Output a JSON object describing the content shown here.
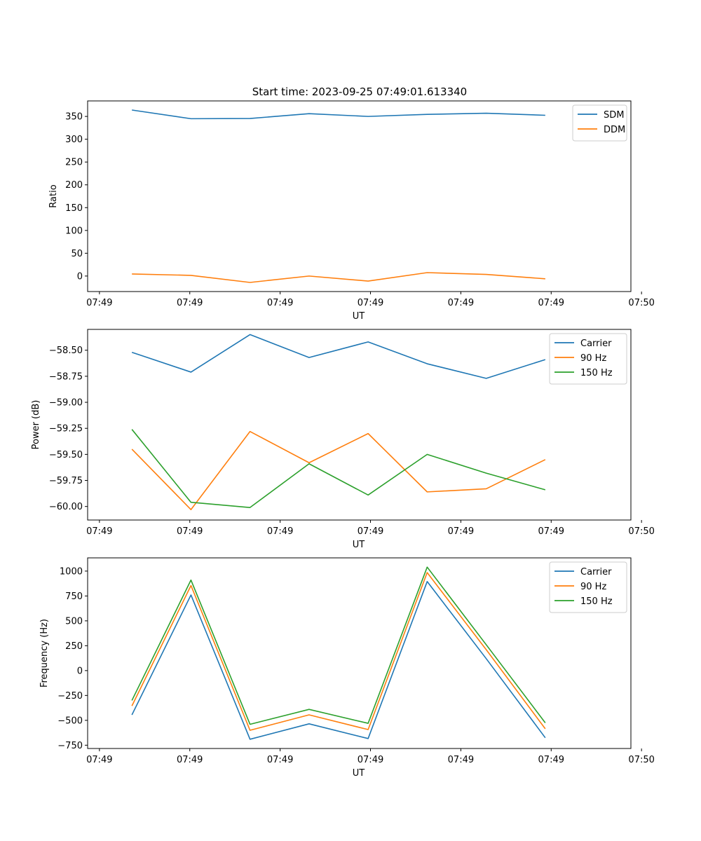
{
  "title": "Start time: 2023-09-25 07:49:01.613340",
  "colors": {
    "c0": "#1f77b4",
    "c1": "#ff7f0e",
    "c2": "#2ca02c",
    "axis": "#000000",
    "legend_border": "#cccccc",
    "background": "#ffffff"
  },
  "chart_data": [
    {
      "type": "line",
      "xlabel": "UT",
      "ylabel": "Ratio",
      "x": [
        1,
        2,
        3,
        4,
        5,
        6,
        7,
        8
      ],
      "xlim": [
        0.25,
        9.45
      ],
      "xticks": [
        0.45,
        1.98,
        3.51,
        5.04,
        6.57,
        8.1,
        9.63
      ],
      "xticklabels": [
        "07:49",
        "07:49",
        "07:49",
        "07:49",
        "07:49",
        "07:49",
        "07:50"
      ],
      "ylim": [
        -34,
        384
      ],
      "yticks": [
        0,
        50,
        100,
        150,
        200,
        250,
        300,
        350
      ],
      "yticklabels": [
        "0",
        "50",
        "100",
        "150",
        "200",
        "250",
        "300",
        "350"
      ],
      "legend_loc": "upper right",
      "series": [
        {
          "name": "SDM",
          "color": "#1f77b4",
          "values": [
            364,
            345,
            345.5,
            356,
            350,
            354.5,
            357,
            352.5
          ]
        },
        {
          "name": "DDM",
          "color": "#ff7f0e",
          "values": [
            4.5,
            1.5,
            -14,
            0,
            -11,
            7.5,
            3.5,
            -6
          ]
        }
      ]
    },
    {
      "type": "line",
      "xlabel": "UT",
      "ylabel": "Power (dB)",
      "x": [
        1,
        2,
        3,
        4,
        5,
        6,
        7,
        8
      ],
      "xlim": [
        0.25,
        9.45
      ],
      "xticks": [
        0.45,
        1.98,
        3.51,
        5.04,
        6.57,
        8.1,
        9.63
      ],
      "xticklabels": [
        "07:49",
        "07:49",
        "07:49",
        "07:49",
        "07:49",
        "07:49",
        "07:50"
      ],
      "ylim": [
        -60.13,
        -58.3
      ],
      "yticks": [
        -60.0,
        -59.75,
        -59.5,
        -59.25,
        -59.0,
        -58.75,
        -58.5
      ],
      "yticklabels": [
        "−60.00",
        "−59.75",
        "−59.50",
        "−59.25",
        "−59.00",
        "−58.75",
        "−58.50"
      ],
      "legend_loc": "upper right",
      "series": [
        {
          "name": "Carrier",
          "color": "#1f77b4",
          "values": [
            -58.52,
            -58.71,
            -58.35,
            -58.57,
            -58.42,
            -58.63,
            -58.77,
            -58.59
          ]
        },
        {
          "name": "90 Hz",
          "color": "#ff7f0e",
          "values": [
            -59.45,
            -60.03,
            -59.28,
            -59.58,
            -59.3,
            -59.86,
            -59.83,
            -59.55
          ]
        },
        {
          "name": "150 Hz",
          "color": "#2ca02c",
          "values": [
            -59.26,
            -59.96,
            -60.01,
            -59.59,
            -59.89,
            -59.5,
            -59.68,
            -59.84
          ]
        }
      ]
    },
    {
      "type": "line",
      "xlabel": "UT",
      "ylabel": "Frequency (Hz)",
      "x": [
        1,
        2,
        3,
        4,
        5,
        6,
        7,
        8
      ],
      "xlim": [
        0.25,
        9.45
      ],
      "xticks": [
        0.45,
        1.98,
        3.51,
        5.04,
        6.57,
        8.1,
        9.63
      ],
      "xticklabels": [
        "07:49",
        "07:49",
        "07:49",
        "07:49",
        "07:49",
        "07:49",
        "07:50"
      ],
      "ylim": [
        -783,
        1133
      ],
      "yticks": [
        -750,
        -500,
        -250,
        0,
        250,
        500,
        750,
        1000
      ],
      "yticklabels": [
        "−750",
        "−500",
        "−250",
        "0",
        "250",
        "500",
        "750",
        "1000"
      ],
      "legend_loc": "upper right",
      "series": [
        {
          "name": "Carrier",
          "color": "#1f77b4",
          "values": [
            -445,
            760,
            -690,
            -535,
            -683,
            895,
            120,
            -675
          ]
        },
        {
          "name": "90 Hz",
          "color": "#ff7f0e",
          "values": [
            -355,
            855,
            -600,
            -445,
            -593,
            985,
            210,
            -585
          ]
        },
        {
          "name": "150 Hz",
          "color": "#2ca02c",
          "values": [
            -300,
            910,
            -540,
            -390,
            -530,
            1040,
            260,
            -525
          ]
        }
      ]
    }
  ]
}
